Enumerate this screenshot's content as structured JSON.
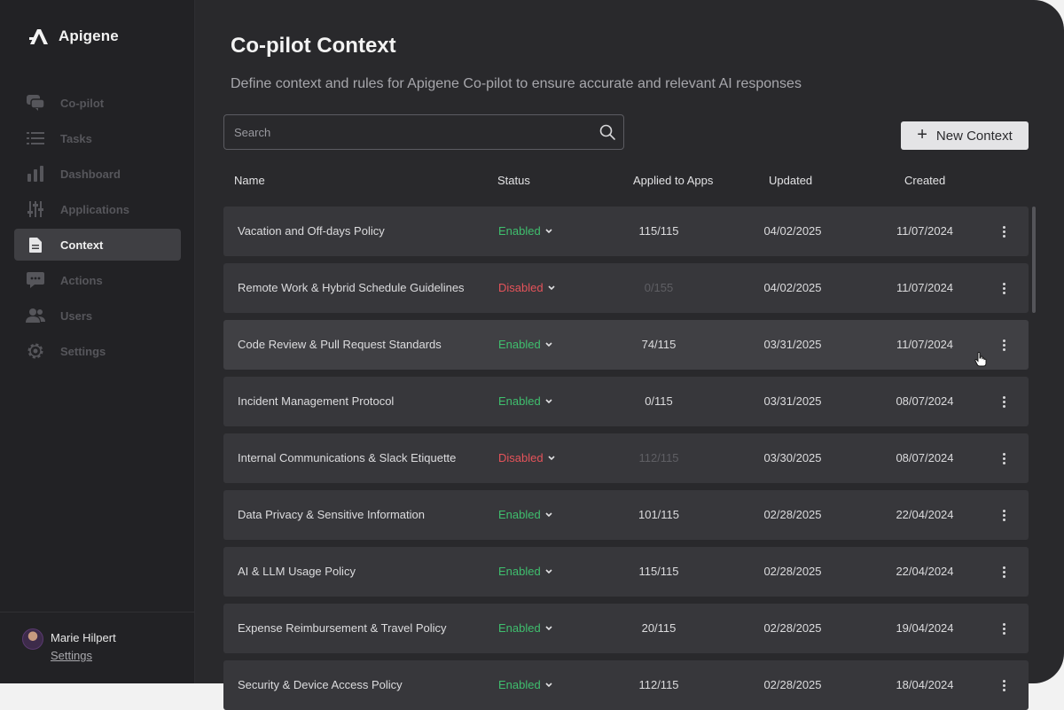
{
  "app": {
    "name": "Apigene"
  },
  "sidebar": {
    "items": [
      {
        "label": "Co-pilot",
        "icon": "chat-bubbles-icon",
        "active": false
      },
      {
        "label": "Tasks",
        "icon": "list-icon",
        "active": false
      },
      {
        "label": "Dashboard",
        "icon": "bar-chart-icon",
        "active": false
      },
      {
        "label": "Applications",
        "icon": "sliders-icon",
        "active": false
      },
      {
        "label": "Context",
        "icon": "document-icon",
        "active": true
      },
      {
        "label": "Actions",
        "icon": "message-icon",
        "active": false
      },
      {
        "label": "Users",
        "icon": "users-icon",
        "active": false
      },
      {
        "label": "Settings",
        "icon": "gear-icon",
        "active": false
      }
    ]
  },
  "user": {
    "name": "Marie Hilpert",
    "settings_label": "Settings"
  },
  "page": {
    "title": "Co-pilot Context",
    "subtitle": "Define context and rules for Apigene Co-pilot to ensure accurate and relevant AI responses"
  },
  "search": {
    "placeholder": "Search",
    "value": ""
  },
  "new_button": {
    "label": "New Context"
  },
  "table": {
    "columns": {
      "name": "Name",
      "status": "Status",
      "apps": "Applied to Apps",
      "updated": "Updated",
      "created": "Created"
    },
    "rows": [
      {
        "name": "Vacation and Off-days Policy",
        "status": "Enabled",
        "apps": "115/115",
        "updated": "04/02/2025",
        "created": "11/07/2024"
      },
      {
        "name": "Remote Work & Hybrid Schedule Guidelines",
        "status": "Disabled",
        "apps": "0/155",
        "updated": "04/02/2025",
        "created": "11/07/2024"
      },
      {
        "name": "Code Review & Pull Request Standards",
        "status": "Enabled",
        "apps": "74/115",
        "updated": "03/31/2025",
        "created": "11/07/2024"
      },
      {
        "name": "Incident Management Protocol",
        "status": "Enabled",
        "apps": "0/115",
        "updated": "03/31/2025",
        "created": "08/07/2024"
      },
      {
        "name": "Internal Communications & Slack Etiquette",
        "status": "Disabled",
        "apps": "112/115",
        "updated": "03/30/2025",
        "created": "08/07/2024"
      },
      {
        "name": "Data Privacy & Sensitive Information",
        "status": "Enabled",
        "apps": "101/115",
        "updated": "02/28/2025",
        "created": "22/04/2024"
      },
      {
        "name": "AI & LLM Usage Policy",
        "status": "Enabled",
        "apps": "115/115",
        "updated": "02/28/2025",
        "created": "22/04/2024"
      },
      {
        "name": "Expense Reimbursement & Travel Policy",
        "status": "Enabled",
        "apps": "20/115",
        "updated": "02/28/2025",
        "created": "19/04/2024"
      },
      {
        "name": "Security & Device Access Policy",
        "status": "Enabled",
        "apps": "112/115",
        "updated": "02/28/2025",
        "created": "18/04/2024"
      }
    ]
  },
  "colors": {
    "enabled": "#3fbf6e",
    "disabled": "#e5535a",
    "background": "#29292c",
    "sidebar": "#222225"
  }
}
